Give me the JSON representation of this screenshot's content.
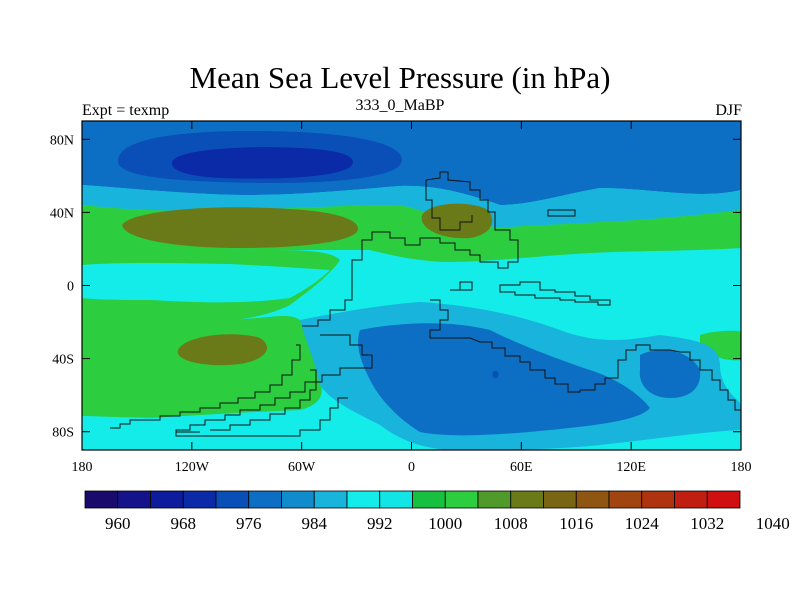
{
  "title": "Mean Sea Level Pressure (in hPa)",
  "left_label": "Expt = texmp",
  "center_label": "333_0_MaBP",
  "right_label": "DJF",
  "map": {
    "y_ticks": [
      {
        "label": "80N",
        "lat": 80
      },
      {
        "label": "40N",
        "lat": 40
      },
      {
        "label": "0",
        "lat": 0
      },
      {
        "label": "40S",
        "lat": -40
      },
      {
        "label": "80S",
        "lat": -80
      }
    ],
    "x_ticks": [
      {
        "label": "180",
        "lon": -180
      },
      {
        "label": "120W",
        "lon": -120
      },
      {
        "label": "60W",
        "lon": -60
      },
      {
        "label": "0",
        "lon": 0
      },
      {
        "label": "60E",
        "lon": 60
      },
      {
        "label": "120E",
        "lon": 120
      },
      {
        "label": "180",
        "lon": 180
      }
    ],
    "lon_range": [
      -180,
      180
    ],
    "lat_range": [
      -90,
      90
    ]
  },
  "colorbar": {
    "colors": [
      "#1a0a6b",
      "#14138a",
      "#0c1c9c",
      "#0a2aa8",
      "#0a4fb8",
      "#0d6fc4",
      "#108ccd",
      "#18b4dc",
      "#14ecea",
      "#12e6e4",
      "#18c040",
      "#2ccd3f",
      "#4f9a2a",
      "#6b7a19",
      "#7a6515",
      "#8f5612",
      "#a04410",
      "#b03310",
      "#c01e10",
      "#d01010"
    ],
    "labels": [
      "960",
      "968",
      "976",
      "984",
      "992",
      "1000",
      "1008",
      "1016",
      "1024",
      "1032",
      "1040"
    ]
  },
  "fill_colors": {
    "deep_blue": "#0a2aa8",
    "blue": "#0d6fc4",
    "light_blue": "#18b4dc",
    "cyan": "#14ecea",
    "green": "#2ccd3f",
    "olive": "#6b7a19",
    "dark_olive": "#5b5c17"
  }
}
